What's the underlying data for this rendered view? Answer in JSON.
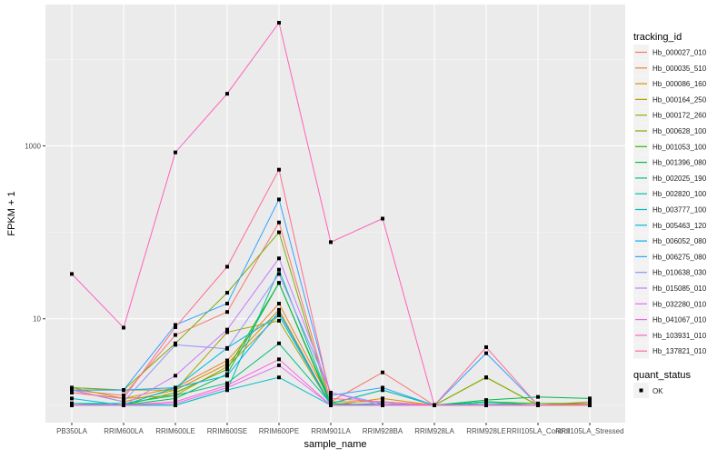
{
  "chart_data": {
    "type": "line",
    "title": "",
    "xlabel": "sample_name",
    "ylabel": "FPKM + 1",
    "yscale": "log10",
    "ylim": [
      0.63,
      43000
    ],
    "y_ticks": [
      10,
      1000
    ],
    "y_tick_labels": [
      "10",
      "1000"
    ],
    "grid": true,
    "categories": [
      "PB350LA",
      "RRIM600LA",
      "RRIM600LE",
      "RRIM600SE",
      "RRIM600PE",
      "RRIM901LA",
      "RRIM928BA",
      "RRIM928LA",
      "RRIM928LE",
      "RRII105LA_Control",
      "RRII105LA_Stressed"
    ],
    "legend": {
      "title": "tracking_id",
      "placement": "right",
      "shape_title": "quant_status",
      "shape_label": "OK"
    },
    "series": [
      {
        "name": "Hb_000027_010",
        "color": "#f8766d",
        "values": [
          1.5,
          1.3,
          6.5,
          12,
          130,
          1.1,
          2.4,
          1,
          1,
          1,
          1.1
        ]
      },
      {
        "name": "Hb_000035_510",
        "color": "#ea8331",
        "values": [
          1.4,
          1.2,
          1.6,
          3.3,
          15,
          1.1,
          1.1,
          1,
          1,
          1,
          1.05
        ]
      },
      {
        "name": "Hb_000086_160",
        "color": "#d89000",
        "values": [
          1.5,
          1.1,
          1.5,
          3,
          12.7,
          1,
          1.2,
          1,
          1,
          1,
          1.05
        ]
      },
      {
        "name": "Hb_000164_250",
        "color": "#c09b00",
        "values": [
          1.6,
          1.2,
          1.3,
          2.8,
          11,
          1,
          1.05,
          1,
          2.1,
          1,
          1
        ]
      },
      {
        "name": "Hb_000172_260",
        "color": "#a3a500",
        "values": [
          1.6,
          1.5,
          1.5,
          7,
          9.5,
          1,
          1,
          1,
          2.1,
          1,
          1
        ]
      },
      {
        "name": "Hb_000628_100",
        "color": "#7cae00",
        "values": [
          1.6,
          1.5,
          5.2,
          20,
          100,
          1,
          1,
          1,
          2.1,
          1,
          1
        ]
      },
      {
        "name": "Hb_001053_100",
        "color": "#39b600",
        "values": [
          1.05,
          1,
          1.4,
          2.6,
          26,
          1,
          1,
          1,
          1.1,
          1.05,
          1.05
        ]
      },
      {
        "name": "Hb_001396_080",
        "color": "#00bb4e",
        "values": [
          1,
          1,
          1.2,
          2.3,
          26,
          1.05,
          1,
          1,
          1.15,
          1.25,
          1.2
        ]
      },
      {
        "name": "Hb_002025_190",
        "color": "#00bf7d",
        "values": [
          1.05,
          1.05,
          1.3,
          1.8,
          5.2,
          1.05,
          1.5,
          1,
          1.1,
          1,
          1
        ]
      },
      {
        "name": "Hb_002820_100",
        "color": "#00c1a3",
        "values": [
          1,
          1,
          1,
          1.5,
          37,
          1.05,
          1.5,
          1,
          1,
          1,
          1
        ]
      },
      {
        "name": "Hb_003777_100",
        "color": "#00bfc4",
        "values": [
          1.05,
          1,
          1,
          1.5,
          2.1,
          1,
          1.05,
          1,
          1.05,
          1,
          1
        ]
      },
      {
        "name": "Hb_005463_120",
        "color": "#00bae0",
        "values": [
          1.2,
          1,
          1.6,
          4.6,
          11,
          1,
          1,
          1,
          1,
          1,
          1
        ]
      },
      {
        "name": "Hb_006052_080",
        "color": "#00b0f6",
        "values": [
          1.5,
          1.5,
          1.6,
          2.2,
          12,
          1,
          1,
          1,
          1,
          1,
          1
        ]
      },
      {
        "name": "Hb_006275_080",
        "color": "#35a2ff",
        "values": [
          1.5,
          1.5,
          8.5,
          15,
          240,
          1.3,
          1.6,
          1,
          4,
          1,
          1
        ]
      },
      {
        "name": "Hb_010638_030",
        "color": "#9590ff",
        "values": [
          1.5,
          1.1,
          5,
          4.5,
          33,
          1.4,
          1.05,
          1,
          1,
          1,
          1
        ]
      },
      {
        "name": "Hb_015085_010",
        "color": "#c77cff",
        "values": [
          1,
          1,
          2.2,
          7.5,
          50,
          1.4,
          1,
          1,
          1,
          1,
          1
        ]
      },
      {
        "name": "Hb_032280_010",
        "color": "#e76bf3",
        "values": [
          1,
          1,
          1.05,
          1.6,
          2.9,
          1,
          1,
          1,
          1,
          1,
          1
        ]
      },
      {
        "name": "Hb_041067_010",
        "color": "#fa62db",
        "values": [
          1,
          1,
          1.1,
          1.7,
          3.4,
          1,
          1,
          1,
          1,
          1,
          1
        ]
      },
      {
        "name": "Hb_103931_010",
        "color": "#ff62bc",
        "values": [
          33,
          7.9,
          840,
          4000,
          26500,
          77,
          144,
          1,
          1,
          1,
          1
        ]
      },
      {
        "name": "Hb_137821_010",
        "color": "#ff6c91",
        "values": [
          1.4,
          1.2,
          8,
          40,
          530,
          1.2,
          1.1,
          1,
          4.7,
          1,
          1
        ]
      }
    ]
  }
}
